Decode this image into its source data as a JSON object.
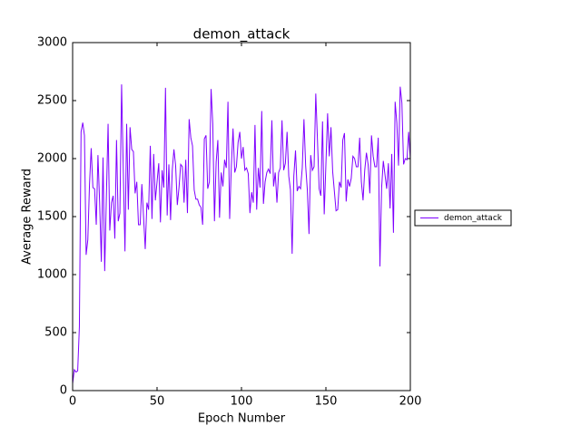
{
  "chart_data": {
    "type": "line",
    "title": "demon_attack",
    "xlabel": "Epoch Number",
    "ylabel": "Average Reward",
    "xlim": [
      0,
      200
    ],
    "xticks": [
      0,
      50,
      100,
      150,
      200
    ],
    "ylim": [
      0,
      3000
    ],
    "yticks": [
      0,
      500,
      1000,
      1500,
      2000,
      2500,
      3000
    ],
    "legend": "right",
    "series": [
      {
        "name": "demon_attack",
        "color": "#7f00ff",
        "values": [
          60,
          180,
          160,
          170,
          550,
          2230,
          2310,
          2200,
          1170,
          1300,
          1780,
          2090,
          1750,
          1740,
          1430,
          2030,
          1620,
          1110,
          2010,
          1030,
          1680,
          2300,
          1380,
          1620,
          1680,
          1310,
          2160,
          1460,
          1530,
          2640,
          1900,
          1200,
          2300,
          1560,
          2270,
          2080,
          2060,
          1700,
          1800,
          1430,
          1430,
          1780,
          1500,
          1220,
          1620,
          1560,
          2110,
          1480,
          2040,
          1640,
          1800,
          1960,
          1450,
          1900,
          1750,
          2610,
          1510,
          1950,
          1470,
          1900,
          2080,
          1940,
          1600,
          1750,
          1950,
          1930,
          1620,
          1990,
          1530,
          2340,
          2180,
          2110,
          1730,
          1650,
          1650,
          1600,
          1580,
          1430,
          2170,
          2200,
          1740,
          1800,
          2600,
          2300,
          1460,
          1970,
          2160,
          1490,
          1880,
          1760,
          1990,
          1920,
          2490,
          1480,
          1940,
          2260,
          1880,
          1930,
          2140,
          2230,
          2000,
          2100,
          1900,
          1920,
          1870,
          1530,
          1710,
          1620,
          2290,
          1560,
          1920,
          1750,
          2410,
          1610,
          1800,
          1880,
          1910,
          1870,
          2330,
          1760,
          1880,
          1620,
          1880,
          1920,
          2330,
          1900,
          1960,
          2230,
          1850,
          1730,
          1180,
          1850,
          2070,
          1720,
          1760,
          1740,
          1920,
          2340,
          1940,
          1730,
          1350,
          2030,
          1900,
          1930,
          2560,
          2160,
          1740,
          1680,
          2320,
          1520,
          1950,
          2390,
          2020,
          2270,
          1890,
          1720,
          1550,
          1560,
          1800,
          1750,
          2160,
          2220,
          1630,
          1820,
          1760,
          1830,
          2020,
          2000,
          1930,
          1930,
          2180,
          1800,
          1640,
          1900,
          2050,
          1950,
          1700,
          2200,
          2020,
          1930,
          1930,
          2180,
          1070,
          1750,
          1980,
          1860,
          1740,
          1960,
          1570,
          2040,
          1360,
          2490,
          2310,
          1940,
          2620,
          2480,
          1950,
          2000,
          1990,
          2230,
          2000
        ]
      }
    ]
  }
}
